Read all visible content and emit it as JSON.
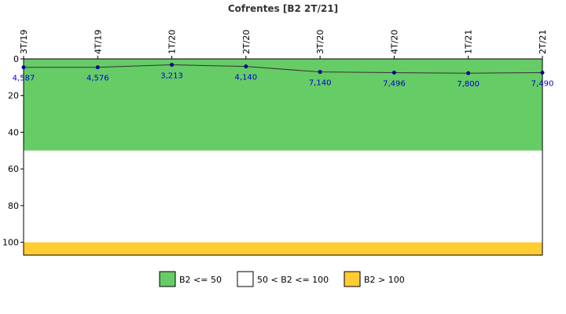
{
  "chart_data": {
    "type": "line",
    "title": "Cofrentes [B2 2T/21]",
    "categories": [
      "3T/19",
      "4T/19",
      "1T/20",
      "2T/20",
      "3T/20",
      "4T/20",
      "1T/21",
      "2T/21"
    ],
    "values": [
      4.587,
      4.576,
      3.213,
      4.14,
      7.14,
      7.496,
      7.8,
      7.49
    ],
    "value_labels": [
      "4,587",
      "4,576",
      "3,213",
      "4,140",
      "7,140",
      "7,496",
      "7,800",
      "7,490"
    ],
    "ylim": [
      0,
      107
    ],
    "y_inverted": true,
    "y_ticks": [
      0,
      20,
      40,
      60,
      80,
      100
    ],
    "bands": [
      {
        "from": 0,
        "to": 50,
        "color": "#66cc66",
        "label": "B2 <= 50"
      },
      {
        "from": 50,
        "to": 100,
        "color": "#ffffff",
        "label": "50 < B2 <= 100"
      },
      {
        "from": 100,
        "to": 107,
        "color": "#ffcc33",
        "label": "B2 > 100"
      }
    ],
    "line_color": "#333333",
    "marker_color": "#000099",
    "label_color": "#0000cc",
    "legend_position": "bottom"
  }
}
